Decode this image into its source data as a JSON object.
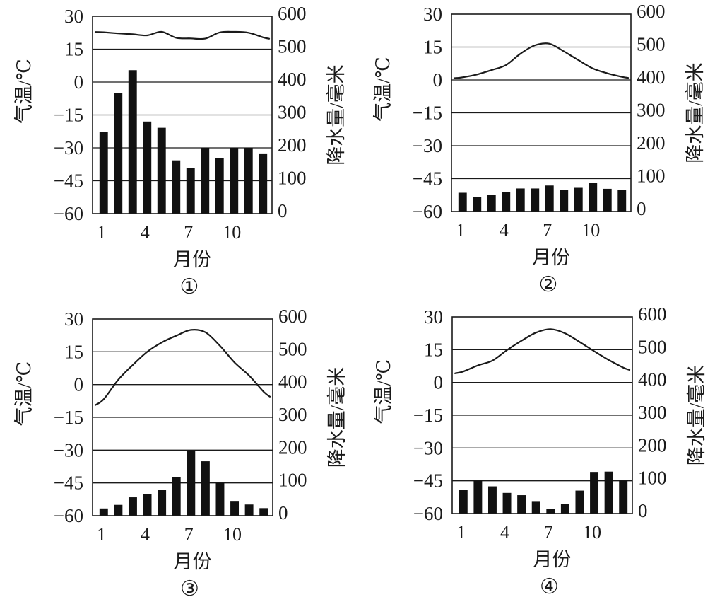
{
  "figure": {
    "description": "Four climate charts (monthly temperature line and precipitation bars)"
  },
  "chart_data": [
    {
      "type": "bar+line",
      "panel_label": "①",
      "title": "",
      "xlabel": "月份",
      "ylabel_left": "气温/℃",
      "ylabel_right": "降水量/毫米",
      "x": [
        1,
        2,
        3,
        4,
        5,
        6,
        7,
        8,
        9,
        10,
        11,
        12
      ],
      "x_tick_labels": [
        "1",
        "4",
        "7",
        "10"
      ],
      "left_ticks": [
        "30",
        "15",
        "0",
        "-15",
        "-30",
        "-45",
        "-60"
      ],
      "right_ticks": [
        "600",
        "500",
        "400",
        "300",
        "200",
        "100",
        "0"
      ],
      "ylim_left": [
        -60,
        30
      ],
      "ylim_right": [
        0,
        600
      ],
      "grid": true,
      "series": [
        {
          "name": "气温",
          "axis": "left",
          "kind": "line",
          "values": [
            22.7,
            22.2,
            21.8,
            21.3,
            22.9,
            20.2,
            19.9,
            19.8,
            22.6,
            22.9,
            22.5,
            20.4
          ]
        },
        {
          "name": "降水量",
          "axis": "right",
          "kind": "bar",
          "values": [
            248,
            367,
            436,
            280,
            261,
            162,
            139,
            200,
            169,
            200,
            200,
            183
          ]
        }
      ]
    },
    {
      "type": "bar+line",
      "panel_label": "②",
      "title": "",
      "xlabel": "月份",
      "ylabel_left": "气温/℃",
      "ylabel_right": "降水量/毫米",
      "x": [
        1,
        2,
        3,
        4,
        5,
        6,
        7,
        8,
        9,
        10,
        11,
        12
      ],
      "x_tick_labels": [
        "1",
        "4",
        "7",
        "10"
      ],
      "left_ticks": [
        "30",
        "15",
        "0",
        "-15",
        "-30",
        "-45",
        "-60"
      ],
      "right_ticks": [
        "600",
        "500",
        "400",
        "300",
        "200",
        "100",
        "0"
      ],
      "ylim_left": [
        -60,
        30
      ],
      "ylim_right": [
        0,
        600
      ],
      "grid": true,
      "series": [
        {
          "name": "气温",
          "axis": "left",
          "kind": "line",
          "values": [
            1.2,
            2.5,
            4.5,
            6.8,
            12.0,
            15.8,
            16.5,
            13.0,
            9.0,
            5.2,
            3.0,
            1.4
          ]
        },
        {
          "name": "降水量",
          "axis": "right",
          "kind": "bar",
          "values": [
            57,
            44,
            50,
            59,
            70,
            70,
            79,
            65,
            72,
            87,
            69,
            66
          ]
        }
      ]
    },
    {
      "type": "bar+line",
      "panel_label": "③",
      "title": "",
      "xlabel": "月份",
      "ylabel_left": "气温/℃",
      "ylabel_right": "降水量/毫米",
      "x": [
        1,
        2,
        3,
        4,
        5,
        6,
        7,
        8,
        9,
        10,
        11,
        12
      ],
      "x_tick_labels": [
        "1",
        "4",
        "7",
        "10"
      ],
      "left_ticks": [
        "30",
        "15",
        "0",
        "-15",
        "-30",
        "-45",
        "-60"
      ],
      "right_ticks": [
        "600",
        "500",
        "400",
        "300",
        "200",
        "100",
        "0"
      ],
      "ylim_left": [
        -60,
        30
      ],
      "ylim_right": [
        0,
        600
      ],
      "grid": true,
      "series": [
        {
          "name": "气温",
          "axis": "left",
          "kind": "line",
          "values": [
            -6.7,
            2.2,
            9.0,
            15.0,
            19.3,
            22.4,
            25.0,
            23.9,
            17.7,
            10.1,
            4.1,
            -3.3
          ]
        },
        {
          "name": "降水量",
          "axis": "right",
          "kind": "bar",
          "values": [
            22,
            33,
            56,
            66,
            78,
            118,
            200,
            166,
            100,
            45,
            34,
            23
          ]
        }
      ]
    },
    {
      "type": "bar+line",
      "panel_label": "④",
      "title": "",
      "xlabel": "月份",
      "ylabel_left": "气温/℃",
      "ylabel_right": "降水量/毫米",
      "x": [
        1,
        2,
        3,
        4,
        5,
        6,
        7,
        8,
        9,
        10,
        11,
        12
      ],
      "x_tick_labels": [
        "1",
        "4",
        "7",
        "10"
      ],
      "left_ticks": [
        "30",
        "15",
        "0",
        "-15",
        "-30",
        "-45",
        "-60"
      ],
      "right_ticks": [
        "600",
        "500",
        "400",
        "300",
        "200",
        "100",
        "0"
      ],
      "ylim_left": [
        -60,
        30
      ],
      "ylim_right": [
        0,
        600
      ],
      "grid": true,
      "series": [
        {
          "name": "气温",
          "axis": "left",
          "kind": "line",
          "values": [
            5.0,
            7.8,
            10.0,
            14.8,
            19.1,
            22.8,
            24.4,
            22.5,
            18.5,
            14.3,
            10.3,
            6.8
          ]
        },
        {
          "name": "降水量",
          "axis": "right",
          "kind": "bar",
          "values": [
            72,
            100,
            83,
            63,
            56,
            38,
            14,
            29,
            70,
            127,
            128,
            100
          ]
        }
      ]
    }
  ]
}
